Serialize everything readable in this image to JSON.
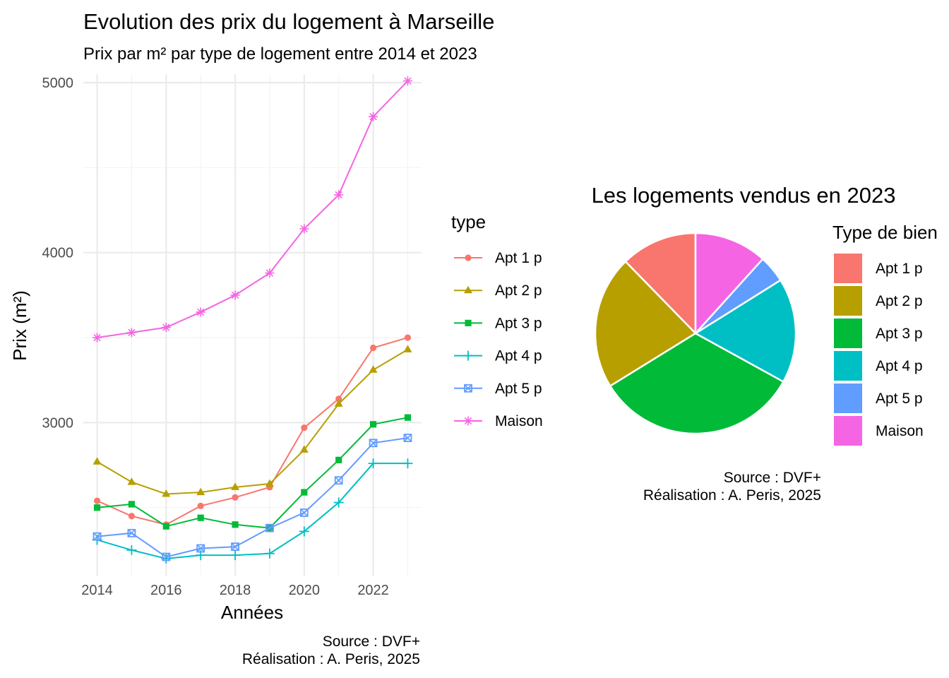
{
  "chart_data": [
    {
      "type": "line",
      "title": "Evolution des prix du logement à Marseille",
      "subtitle": "Prix par m² par type de logement entre 2014 et 2023",
      "xlabel": "Années",
      "ylabel": "Prix (m²)",
      "caption_source": "Source : DVF+",
      "caption_author": "Réalisation : A. Peris, 2025",
      "x": [
        2014,
        2015,
        2016,
        2017,
        2018,
        2019,
        2020,
        2021,
        2022,
        2023
      ],
      "xticks": [
        "2014",
        "2016",
        "2018",
        "2020",
        "2022"
      ],
      "xtick_values": [
        2014,
        2016,
        2018,
        2020,
        2022
      ],
      "yticks": [
        "3000",
        "4000",
        "5000"
      ],
      "ytick_values": [
        3000,
        4000,
        5000
      ],
      "ylim": [
        2100,
        5050
      ],
      "xlim": [
        2013.6,
        2023.4
      ],
      "grid": true,
      "legend_title": "type",
      "legend_position": "right",
      "series": [
        {
          "name": "Apt 1 p",
          "color": "#F8766D",
          "shape": "circle",
          "values": [
            2540,
            2450,
            2400,
            2510,
            2560,
            2620,
            2970,
            3140,
            3440,
            3500
          ]
        },
        {
          "name": "Apt 2 p",
          "color": "#B79F00",
          "shape": "triangle",
          "values": [
            2770,
            2650,
            2580,
            2590,
            2620,
            2640,
            2840,
            3110,
            3310,
            3430
          ]
        },
        {
          "name": "Apt 3 p",
          "color": "#00BA38",
          "shape": "square",
          "values": [
            2500,
            2520,
            2390,
            2440,
            2400,
            2380,
            2590,
            2780,
            2990,
            3030
          ]
        },
        {
          "name": "Apt 4 p",
          "color": "#00BFC4",
          "shape": "plus",
          "values": [
            2310,
            2250,
            2200,
            2220,
            2220,
            2230,
            2360,
            2530,
            2760,
            2760
          ]
        },
        {
          "name": "Apt 5 p",
          "color": "#619CFF",
          "shape": "boxed-x",
          "values": [
            2330,
            2350,
            2210,
            2260,
            2270,
            2380,
            2470,
            2660,
            2880,
            2910
          ]
        },
        {
          "name": "Maison",
          "color": "#F564E3",
          "shape": "asterisk",
          "values": [
            3500,
            3530,
            3560,
            3650,
            3750,
            3880,
            4140,
            4340,
            4800,
            5010
          ]
        }
      ]
    },
    {
      "type": "pie",
      "title": "Les logements vendus en 2023",
      "legend_title": "Type de bien",
      "legend_position": "right",
      "caption_source": "Source : DVF+",
      "caption_author": "Réalisation : A. Peris, 2025",
      "slices": [
        {
          "label": "Apt 1 p",
          "value": 12.3,
          "color": "#F8766D"
        },
        {
          "label": "Apt 2 p",
          "value": 21.5,
          "color": "#B79F00"
        },
        {
          "label": "Apt 3 p",
          "value": 33.2,
          "color": "#00BA38"
        },
        {
          "label": "Apt 4 p",
          "value": 16.9,
          "color": "#00BFC4"
        },
        {
          "label": "Apt 5 p",
          "value": 4.4,
          "color": "#619CFF"
        },
        {
          "label": "Maison",
          "value": 11.7,
          "color": "#F564E3"
        }
      ]
    }
  ]
}
